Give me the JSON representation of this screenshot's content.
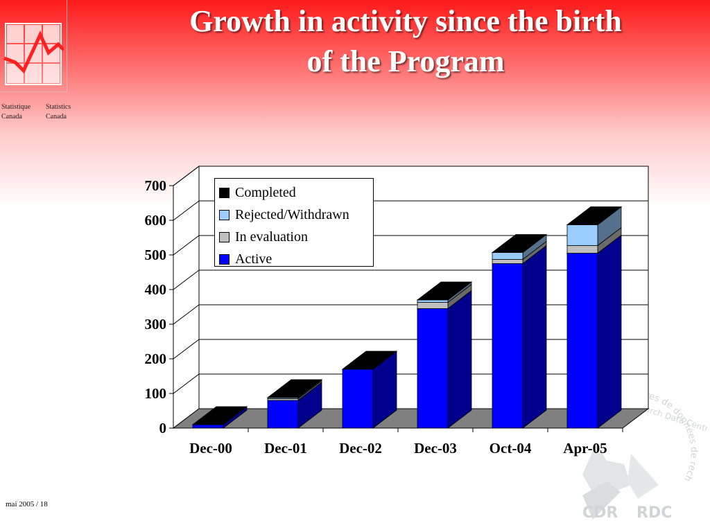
{
  "slide": {
    "title_line1": "Growth in activity since the birth",
    "title_line2": "of the Program",
    "footer": "mai 2005 / 18"
  },
  "agency": {
    "name_fr_1": "Statistique",
    "name_fr_2": "Canada",
    "name_en_1": "Statistics",
    "name_en_2": "Canada"
  },
  "watermark": {
    "arc_text": "Centres de données de recherche",
    "arc_text_en": "Research Data Centres",
    "left_label": "CDR",
    "right_label": "RDC"
  },
  "colors": {
    "background_top": "#ff1a1a",
    "active": "#0000ff",
    "in_evaluation": "#c0c0c0",
    "rejected": "#99ccff",
    "completed": "#000000",
    "floor": "#808080"
  },
  "chart_data": {
    "type": "bar",
    "stacked": true,
    "three_d": true,
    "categories": [
      "Dec-00",
      "Dec-01",
      "Dec-02",
      "Dec-03",
      "Oct-04",
      "Apr-05"
    ],
    "series": [
      {
        "name": "Active",
        "color": "#0000ff",
        "values": [
          10,
          80,
          170,
          345,
          475,
          505
        ]
      },
      {
        "name": "In evaluation",
        "color": "#c0c0c0",
        "values": [
          0,
          5,
          0,
          18,
          12,
          22
        ]
      },
      {
        "name": "Rejected/Withdrawn",
        "color": "#99ccff",
        "values": [
          0,
          3,
          0,
          7,
          20,
          60
        ]
      },
      {
        "name": "Completed",
        "color": "#000000",
        "values": [
          0,
          0,
          0,
          0,
          0,
          0
        ]
      }
    ],
    "ylim": [
      0,
      700
    ],
    "yticks": [
      0,
      100,
      200,
      300,
      400,
      500,
      600,
      700
    ],
    "grid": true,
    "legend_position": "top-left",
    "title": "",
    "xlabel": "",
    "ylabel": ""
  }
}
